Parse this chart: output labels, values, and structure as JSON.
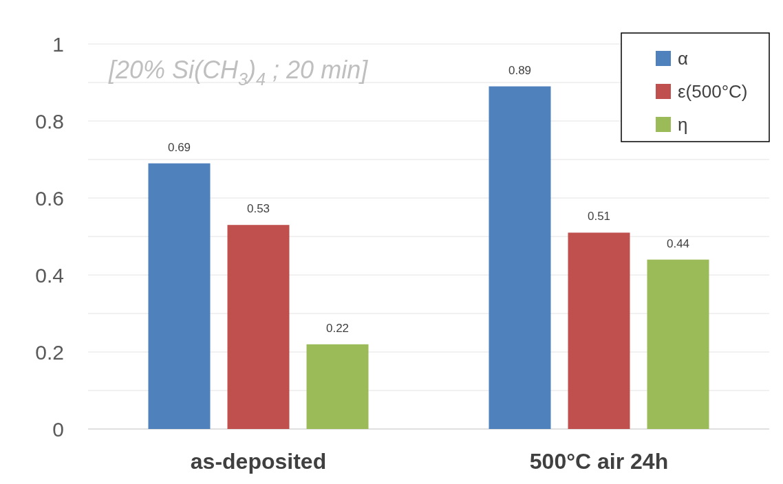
{
  "chart_data": {
    "type": "bar",
    "categories": [
      "as-deposited",
      "500°C air 24h"
    ],
    "series": [
      {
        "name": "α",
        "color": "#4f81bd",
        "values": [
          0.69,
          0.89
        ]
      },
      {
        "name": "ε(500°C)",
        "color": "#c0504d",
        "values": [
          0.53,
          0.51
        ]
      },
      {
        "name": "η",
        "color": "#9bbb59",
        "values": [
          0.22,
          0.44
        ]
      }
    ],
    "ylim": [
      0,
      1
    ],
    "yticks": [
      0,
      {
        "value": 0.1,
        "label": null
      },
      0.2,
      {
        "value": 0.3,
        "label": null
      },
      0.4,
      {
        "value": 0.5,
        "label": null
      },
      0.6,
      {
        "value": 0.7,
        "label": null
      },
      0.8,
      {
        "value": 0.9,
        "label": null
      },
      1
    ],
    "grid": "y",
    "legend": "top right",
    "data_labels": true,
    "annotations": [
      "[20% Si(CH$_{3}$)$_{4}$ ; 20 min]"
    ]
  }
}
